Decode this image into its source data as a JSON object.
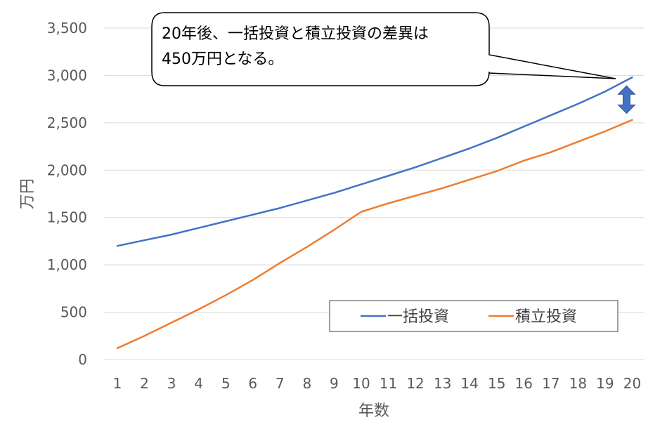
{
  "chart_data": {
    "type": "line",
    "title": "",
    "xlabel": "年数",
    "ylabel": "万円",
    "x": [
      1,
      2,
      3,
      4,
      5,
      6,
      7,
      8,
      9,
      10,
      11,
      12,
      13,
      14,
      15,
      16,
      17,
      18,
      19,
      20
    ],
    "ylim": [
      0,
      3500
    ],
    "yticks": [
      0,
      500,
      1000,
      1500,
      2000,
      2500,
      3000,
      3500
    ],
    "ytick_labels": [
      "0",
      "500",
      "1,000",
      "1,500",
      "2,000",
      "2,500",
      "3,000",
      "3,500"
    ],
    "grid": "horizontal",
    "legend_position": "bottom-right",
    "series": [
      {
        "name": "一括投資",
        "color": "#4472C4",
        "values": [
          1200,
          1260,
          1320,
          1390,
          1460,
          1530,
          1600,
          1680,
          1760,
          1850,
          1940,
          2030,
          2130,
          2230,
          2340,
          2460,
          2580,
          2700,
          2830,
          2980
        ]
      },
      {
        "name": "積立投資",
        "color": "#ED7D31",
        "values": [
          120,
          250,
          390,
          530,
          680,
          840,
          1020,
          1190,
          1370,
          1560,
          1650,
          1730,
          1810,
          1900,
          1990,
          2100,
          2190,
          2300,
          2410,
          2530
        ]
      }
    ],
    "annotations": [
      {
        "text_line1": "20年後、一括投資と積立投資の差異は",
        "text_line2": "450万円となる。",
        "arrow_color": "#4472C4",
        "arrow_x": 20,
        "arrow_y_top": 2890,
        "arrow_y_bottom": 2600
      }
    ]
  }
}
